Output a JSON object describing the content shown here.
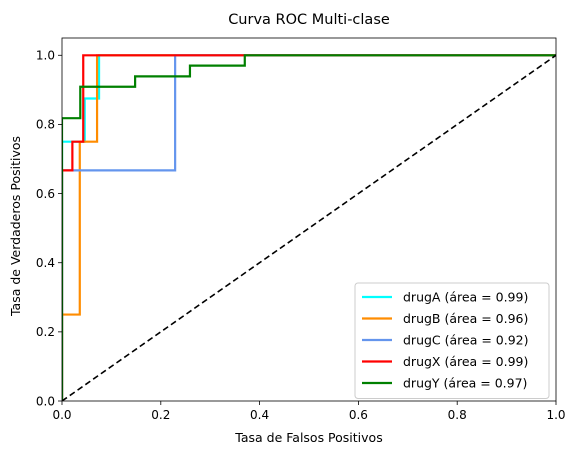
{
  "chart_data": {
    "type": "line",
    "title": "Curva ROC Multi-clase",
    "xlabel": "Tasa de Falsos Positivos",
    "ylabel": "Tasa de Verdaderos Positivos",
    "xlim": [
      0.0,
      1.0
    ],
    "ylim": [
      0.0,
      1.05
    ],
    "x_ticks": [
      0.0,
      0.2,
      0.4,
      0.6,
      0.8,
      1.0
    ],
    "y_ticks": [
      0.0,
      0.2,
      0.4,
      0.6,
      0.8,
      1.0
    ],
    "x_tick_labels": [
      "0.0",
      "0.2",
      "0.4",
      "0.6",
      "0.8",
      "1.0"
    ],
    "y_tick_labels": [
      "0.0",
      "0.2",
      "0.4",
      "0.6",
      "0.8",
      "1.0"
    ],
    "grid": false,
    "legend_position": "lower right",
    "series": [
      {
        "name": "drugA (área = 0.99)",
        "color": "#00ffff",
        "x": [
          0.0,
          0.0,
          0.0,
          0.046,
          0.046,
          0.075,
          0.075,
          1.0
        ],
        "y": [
          0.0,
          0.75,
          0.75,
          0.75,
          0.875,
          0.875,
          1.0,
          1.0
        ]
      },
      {
        "name": "drugB (área = 0.96)",
        "color": "#ff8c00",
        "x": [
          0.0,
          0.0,
          0.036,
          0.036,
          0.071,
          0.071,
          1.0
        ],
        "y": [
          0.0,
          0.25,
          0.25,
          0.75,
          0.75,
          1.0,
          1.0
        ]
      },
      {
        "name": "drugC (área = 0.92)",
        "color": "#6495ed",
        "x": [
          0.0,
          0.0,
          0.229,
          0.229,
          1.0
        ],
        "y": [
          0.0,
          0.667,
          0.667,
          1.0,
          1.0
        ]
      },
      {
        "name": "drugX (área = 0.99)",
        "color": "#ff0000",
        "x": [
          0.0,
          0.0,
          0.021,
          0.021,
          0.043,
          0.043,
          1.0
        ],
        "y": [
          0.0,
          0.667,
          0.667,
          0.75,
          0.75,
          1.0,
          1.0
        ]
      },
      {
        "name": "drugY (área = 0.97)",
        "color": "#008000",
        "x": [
          0.0,
          0.0,
          0.037,
          0.037,
          0.148,
          0.148,
          0.259,
          0.259,
          0.37,
          0.37,
          1.0
        ],
        "y": [
          0.0,
          0.818,
          0.818,
          0.909,
          0.909,
          0.939,
          0.939,
          0.97,
          0.97,
          1.0,
          1.0
        ]
      }
    ],
    "reference_line": {
      "x": [
        0.0,
        1.0
      ],
      "y": [
        0.0,
        1.0
      ],
      "color": "#000000",
      "style": "dashed"
    }
  }
}
